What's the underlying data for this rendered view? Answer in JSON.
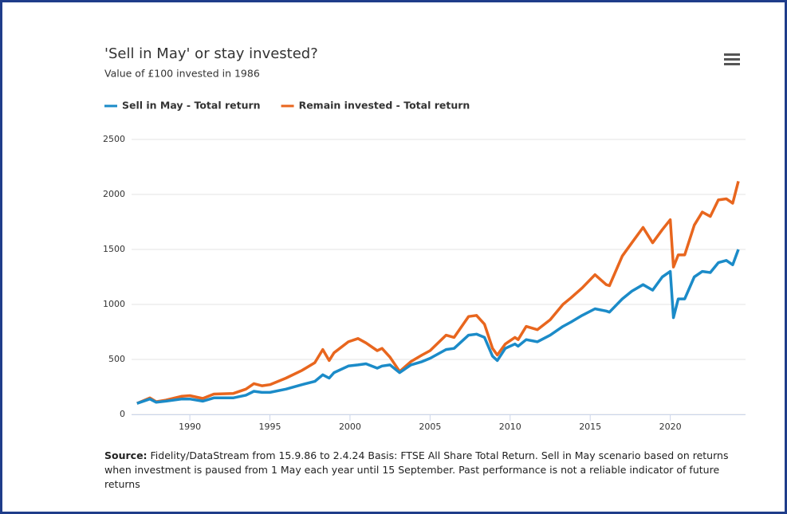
{
  "chart_data": {
    "type": "line",
    "title": "'Sell in May' or stay invested?",
    "subtitle": "Value of £100 invested in 1986",
    "x": [
      1986.7,
      1987.5,
      1987.9,
      1988.5,
      1989.5,
      1990.0,
      1990.8,
      1991.5,
      1992.7,
      1993.5,
      1994.0,
      1994.5,
      1995.0,
      1996.0,
      1997.0,
      1997.8,
      1998.3,
      1998.7,
      1999.0,
      1999.9,
      2000.5,
      2001.0,
      2001.7,
      2002.0,
      2002.5,
      2003.1,
      2003.8,
      2004.5,
      2005.0,
      2006.0,
      2006.5,
      2007.4,
      2007.9,
      2008.4,
      2008.9,
      2009.2,
      2009.7,
      2010.3,
      2010.5,
      2011.0,
      2011.7,
      2012.5,
      2013.3,
      2013.8,
      2014.5,
      2015.3,
      2016.0,
      2016.2,
      2017.0,
      2017.6,
      2018.3,
      2018.9,
      2019.5,
      2020.0,
      2020.2,
      2020.5,
      2020.9,
      2021.5,
      2022.0,
      2022.5,
      2023.0,
      2023.5,
      2023.9,
      2024.25
    ],
    "series": [
      {
        "name": "Sell in May - Total return",
        "color": "#1b8bc8",
        "values": [
          100,
          140,
          110,
          120,
          140,
          140,
          120,
          150,
          150,
          175,
          210,
          200,
          200,
          230,
          270,
          300,
          360,
          330,
          380,
          440,
          450,
          460,
          420,
          440,
          450,
          380,
          450,
          480,
          510,
          590,
          600,
          720,
          730,
          700,
          530,
          490,
          600,
          640,
          620,
          680,
          660,
          720,
          800,
          840,
          900,
          960,
          940,
          930,
          1050,
          1120,
          1180,
          1130,
          1250,
          1300,
          880,
          1050,
          1050,
          1250,
          1300,
          1290,
          1380,
          1400,
          1360,
          1500
        ]
      },
      {
        "name": "Remain invested - Total return",
        "color": "#e8661e",
        "values": [
          100,
          150,
          115,
          130,
          165,
          170,
          145,
          185,
          190,
          230,
          280,
          260,
          270,
          330,
          400,
          470,
          590,
          490,
          560,
          660,
          690,
          650,
          580,
          600,
          520,
          390,
          480,
          540,
          580,
          720,
          700,
          890,
          900,
          820,
          600,
          540,
          640,
          700,
          680,
          800,
          770,
          860,
          1000,
          1060,
          1150,
          1270,
          1180,
          1170,
          1440,
          1560,
          1700,
          1560,
          1680,
          1770,
          1340,
          1450,
          1450,
          1720,
          1840,
          1800,
          1950,
          1960,
          1920,
          2120
        ]
      }
    ],
    "xlim": [
      1986.36,
      2024.7
    ],
    "xticks": [
      1990,
      1995,
      2000,
      2005,
      2010,
      2015,
      2020
    ],
    "ylim": [
      0,
      2500
    ],
    "yticks": [
      0,
      500,
      1000,
      1500,
      2000,
      2500
    ],
    "grid": true,
    "legend": "top-left",
    "source_label": "Source:",
    "source_text": "Fidelity/DataStream from 15.9.86 to 2.4.24 Basis: FTSE All Share Total Return. Sell in May scenario based on returns when investment is paused from 1 May each year until 15 September. Past performance is not a reliable indicator of future returns"
  }
}
